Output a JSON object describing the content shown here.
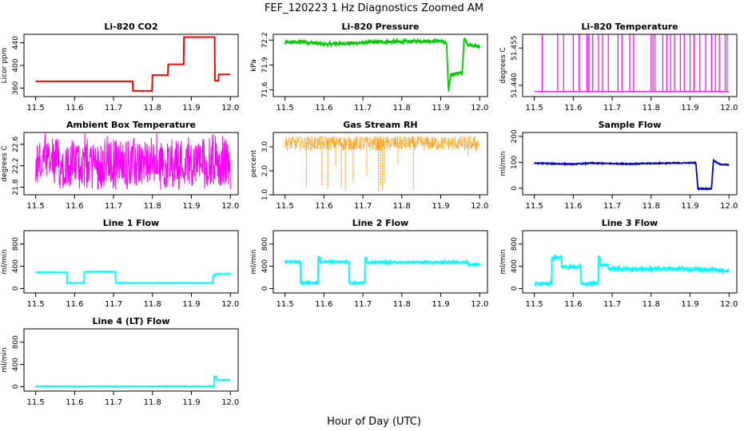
{
  "figure": {
    "title": "FEF_120223  1 Hz Diagnostics Zoomed AM",
    "xlabel": "Hour of Day (UTC)"
  },
  "chart_data": [
    {
      "type": "line",
      "title": "Li-820 CO2",
      "ylabel": "Licor ppm",
      "color": "#ff0000",
      "xlim": [
        11.47,
        12.02
      ],
      "ylim": [
        345,
        455
      ],
      "xticks": [
        "11.5",
        "11.6",
        "11.7",
        "11.8",
        "11.9",
        "12.0"
      ],
      "yticks": [
        "360",
        "400",
        "440"
      ],
      "series": [
        {
          "kind": "step",
          "x": [
            11.5,
            11.75,
            11.8,
            11.84,
            11.88,
            11.96,
            11.97,
            12.0
          ],
          "values": [
            372,
            355,
            383,
            402,
            450,
            373,
            384,
            384
          ]
        }
      ]
    },
    {
      "type": "line",
      "title": "Li-820 Pressure",
      "ylabel": "kPa",
      "color": "#00cc00",
      "xlim": [
        11.47,
        12.02
      ],
      "ylim": [
        71.52,
        72.27
      ],
      "xticks": [
        "11.5",
        "11.6",
        "11.7",
        "11.8",
        "11.9",
        "12.0"
      ],
      "yticks": [
        "71.6",
        "71.9",
        "72.2"
      ],
      "series": [
        {
          "kind": "line",
          "noise": 0.02,
          "x": [
            11.5,
            11.55,
            11.6,
            11.65,
            11.7,
            11.75,
            11.8,
            11.85,
            11.9,
            11.915,
            11.92,
            11.925,
            11.93,
            11.945,
            11.955,
            11.96,
            11.97,
            12.0
          ],
          "values": [
            72.17,
            72.18,
            72.15,
            72.16,
            72.17,
            72.18,
            72.18,
            72.19,
            72.19,
            72.16,
            71.57,
            71.78,
            71.79,
            71.8,
            71.8,
            72.22,
            72.15,
            72.12
          ]
        }
      ]
    },
    {
      "type": "line",
      "title": "Li-820 Temperature",
      "ylabel": "degrees C",
      "color": "#ff00ff",
      "xlim": [
        11.47,
        12.02
      ],
      "ylim": [
        51.4355,
        51.4605
      ],
      "xticks": [
        "11.5",
        "11.6",
        "11.7",
        "11.8",
        "11.9",
        "12.0"
      ],
      "yticks": [
        "51.440",
        "51.455"
      ],
      "series": [
        {
          "kind": "spikes",
          "base": 51.4375,
          "high": 51.4605,
          "x": [
            11.52,
            11.56,
            11.575,
            11.6,
            11.615,
            11.635,
            11.64,
            11.65,
            11.665,
            11.675,
            11.69,
            11.715,
            11.725,
            11.745,
            11.755,
            11.8,
            11.805,
            11.81,
            11.83,
            11.84,
            11.85,
            11.86,
            11.875,
            11.885,
            11.9,
            11.91,
            11.925,
            11.94,
            11.955,
            11.965,
            11.975,
            11.99,
            11.995
          ]
        }
      ]
    },
    {
      "type": "line",
      "title": "Ambient Box Temperature",
      "ylabel": "degrees C",
      "color": "#ff00ff",
      "xlim": [
        11.47,
        12.02
      ],
      "ylim": [
        21.66,
        22.82
      ],
      "xticks": [
        "11.5",
        "11.6",
        "11.7",
        "11.8",
        "11.9",
        "12.0"
      ],
      "yticks": [
        "21.8",
        "22.2",
        "22.6"
      ],
      "series": [
        {
          "kind": "noise",
          "center": 22.3,
          "min": 21.75,
          "max": 22.8
        }
      ]
    },
    {
      "type": "line",
      "title": "Gas Stream RH",
      "ylabel": "percent",
      "color": "#ff9900",
      "xlim": [
        11.47,
        12.02
      ],
      "ylim": [
        1.0,
        3.6
      ],
      "xticks": [
        "11.5",
        "11.6",
        "11.7",
        "11.8",
        "11.9",
        "12.0"
      ],
      "yticks": [
        "1.0",
        "2.0",
        "3.0"
      ],
      "series": [
        {
          "kind": "dips",
          "center": 3.2,
          "min": 2.85,
          "max": 3.45,
          "x": [
            11.555,
            11.595,
            11.61,
            11.63,
            11.645,
            11.655,
            11.675,
            11.71,
            11.74,
            11.745,
            11.75,
            11.755,
            11.79,
            11.83,
            11.97,
            11.99
          ],
          "values": [
            1.3,
            1.4,
            1.25,
            2.2,
            1.3,
            1.2,
            1.5,
            1.8,
            1.1,
            1.4,
            1.2,
            1.5,
            2.3,
            1.2,
            2.6,
            2.8
          ]
        }
      ]
    },
    {
      "type": "line",
      "title": "Sample Flow",
      "ylabel": "ml/min",
      "color": "#0000cc",
      "xlim": [
        11.47,
        12.02
      ],
      "ylim": [
        -25,
        215
      ],
      "xticks": [
        "11.5",
        "11.6",
        "11.7",
        "11.8",
        "11.9",
        "12.0"
      ],
      "yticks": [
        "0",
        "100",
        "200"
      ],
      "series": [
        {
          "kind": "line",
          "noise": 2,
          "x": [
            11.5,
            11.55,
            11.6,
            11.65,
            11.7,
            11.75,
            11.8,
            11.85,
            11.9,
            11.915,
            11.92,
            11.955,
            11.96,
            11.975,
            12.0
          ],
          "values": [
            97,
            95,
            93,
            97,
            95,
            94,
            96,
            97,
            98,
            98,
            -2,
            -2,
            108,
            93,
            90
          ]
        }
      ]
    },
    {
      "type": "line",
      "title": "Line 1 Flow",
      "ylabel": "ml/min",
      "color": "#00ffff",
      "xlim": [
        11.47,
        12.02
      ],
      "ylim": [
        -80,
        1040
      ],
      "xticks": [
        "11.5",
        "11.6",
        "11.7",
        "11.8",
        "11.9",
        "12.0"
      ],
      "yticks": [
        "0",
        "400",
        "800"
      ],
      "series": [
        {
          "kind": "step",
          "noise": 5,
          "x": [
            11.5,
            11.58,
            11.625,
            11.705,
            11.955,
            11.96,
            12.0
          ],
          "values": [
            290,
            100,
            300,
            100,
            220,
            260,
            250
          ]
        }
      ]
    },
    {
      "type": "line",
      "title": "Line 2 Flow",
      "ylabel": "ml/min",
      "color": "#00ffff",
      "xlim": [
        11.47,
        12.02
      ],
      "ylim": [
        -80,
        1040
      ],
      "xticks": [
        "11.5",
        "11.6",
        "11.7",
        "11.8",
        "11.9",
        "12.0"
      ],
      "yticks": [
        "0",
        "400",
        "800"
      ],
      "series": [
        {
          "kind": "step",
          "noise": 15,
          "x": [
            11.5,
            11.54,
            11.585,
            11.59,
            11.665,
            11.705,
            11.71,
            11.72,
            11.97,
            12.0
          ],
          "values": [
            480,
            100,
            560,
            480,
            100,
            560,
            470,
            470,
            430,
            430
          ]
        }
      ]
    },
    {
      "type": "line",
      "title": "Line 3 Flow",
      "ylabel": "ml/min",
      "color": "#00ffff",
      "xlim": [
        11.47,
        12.02
      ],
      "ylim": [
        -80,
        1040
      ],
      "xticks": [
        "11.5",
        "11.6",
        "11.7",
        "11.8",
        "11.9",
        "12.0"
      ],
      "yticks": [
        "0",
        "400",
        "800"
      ],
      "series": [
        {
          "kind": "step",
          "noise": 25,
          "x": [
            11.5,
            11.54,
            11.545,
            11.57,
            11.62,
            11.665,
            11.67,
            11.69,
            11.72,
            11.8,
            11.9,
            11.97,
            12.0
          ],
          "values": [
            80,
            100,
            560,
            390,
            90,
            560,
            420,
            360,
            350,
            350,
            340,
            320,
            320
          ]
        }
      ]
    },
    {
      "type": "line",
      "title": "Line 4 (LT) Flow",
      "ylabel": "ml/min",
      "color": "#00ffff",
      "xlim": [
        11.47,
        12.02
      ],
      "ylim": [
        -80,
        1040
      ],
      "xticks": [
        "11.5",
        "11.6",
        "11.7",
        "11.8",
        "11.9",
        "12.0"
      ],
      "yticks": [
        "0",
        "400",
        "800"
      ],
      "series": [
        {
          "kind": "step",
          "noise": 3,
          "x": [
            11.5,
            11.955,
            11.958,
            11.965,
            12.0
          ],
          "values": [
            5,
            5,
            180,
            120,
            120
          ]
        }
      ]
    }
  ]
}
